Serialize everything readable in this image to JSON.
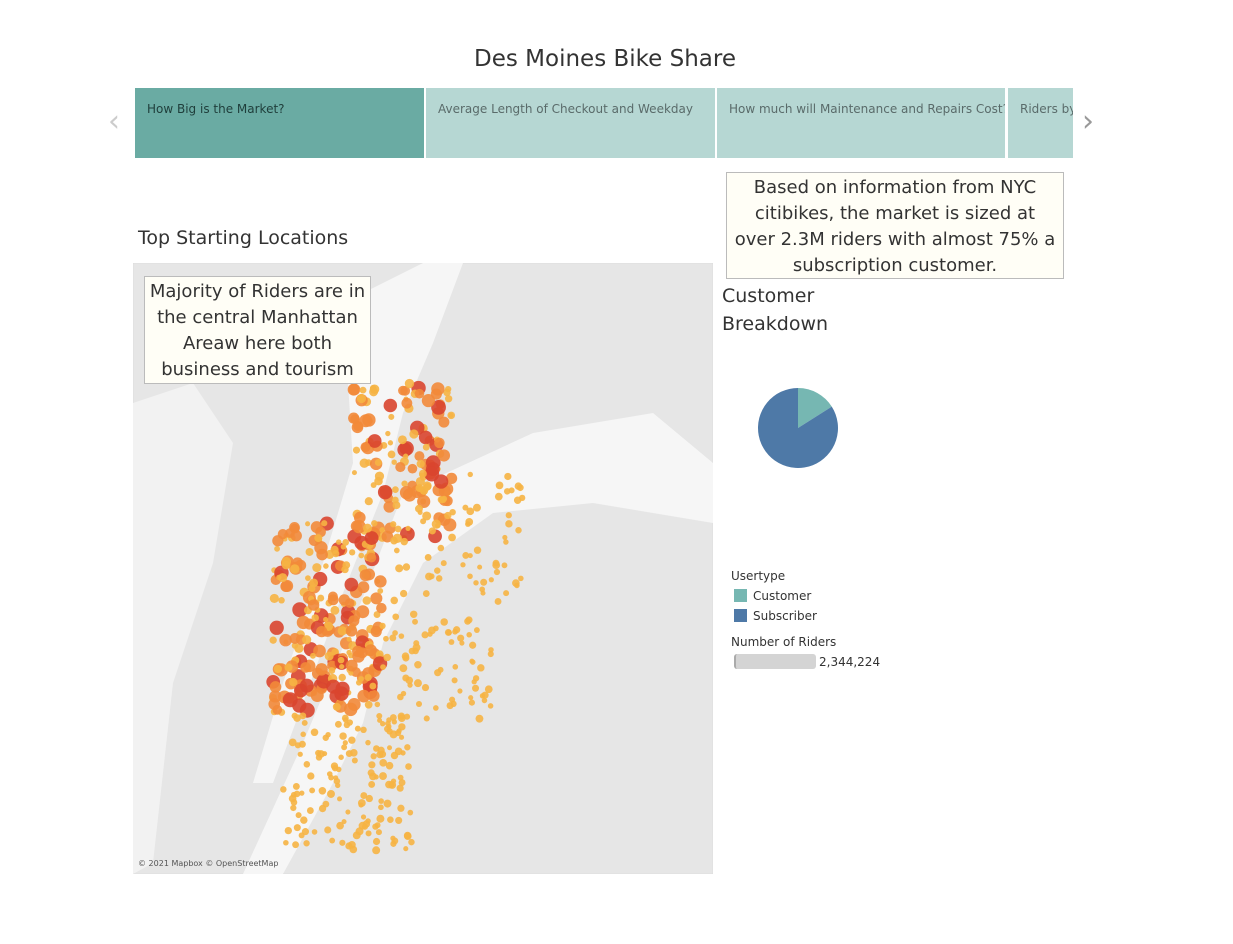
{
  "title": "Des Moines Bike Share",
  "tabs": [
    "How Big is the Market?",
    "Average Length of Checkout and Weekday",
    "How much will Maintenance and Repairs Cost?",
    "Riders by"
  ],
  "map": {
    "title": "Top Starting Locations",
    "annotation": "Majority of Riders are in the central Manhattan Areaw here both business and tourism fl..",
    "attribution": "© 2021 Mapbox © OpenStreetMap"
  },
  "callout": "Based on information from NYC citibikes, the market is sized at over 2.3M riders with almost 75% a subscription customer.",
  "chart_data": {
    "type": "pie",
    "title": "Customer Breakdown",
    "categories": [
      "Customer",
      "Subscriber"
    ],
    "values": [
      16,
      84
    ],
    "colors": [
      "#76b7b2",
      "#4e79a7"
    ],
    "legend_title": "Usertype",
    "size_legend": {
      "title": "Number of Riders",
      "value": 2344224,
      "label": "2,344,224"
    }
  }
}
